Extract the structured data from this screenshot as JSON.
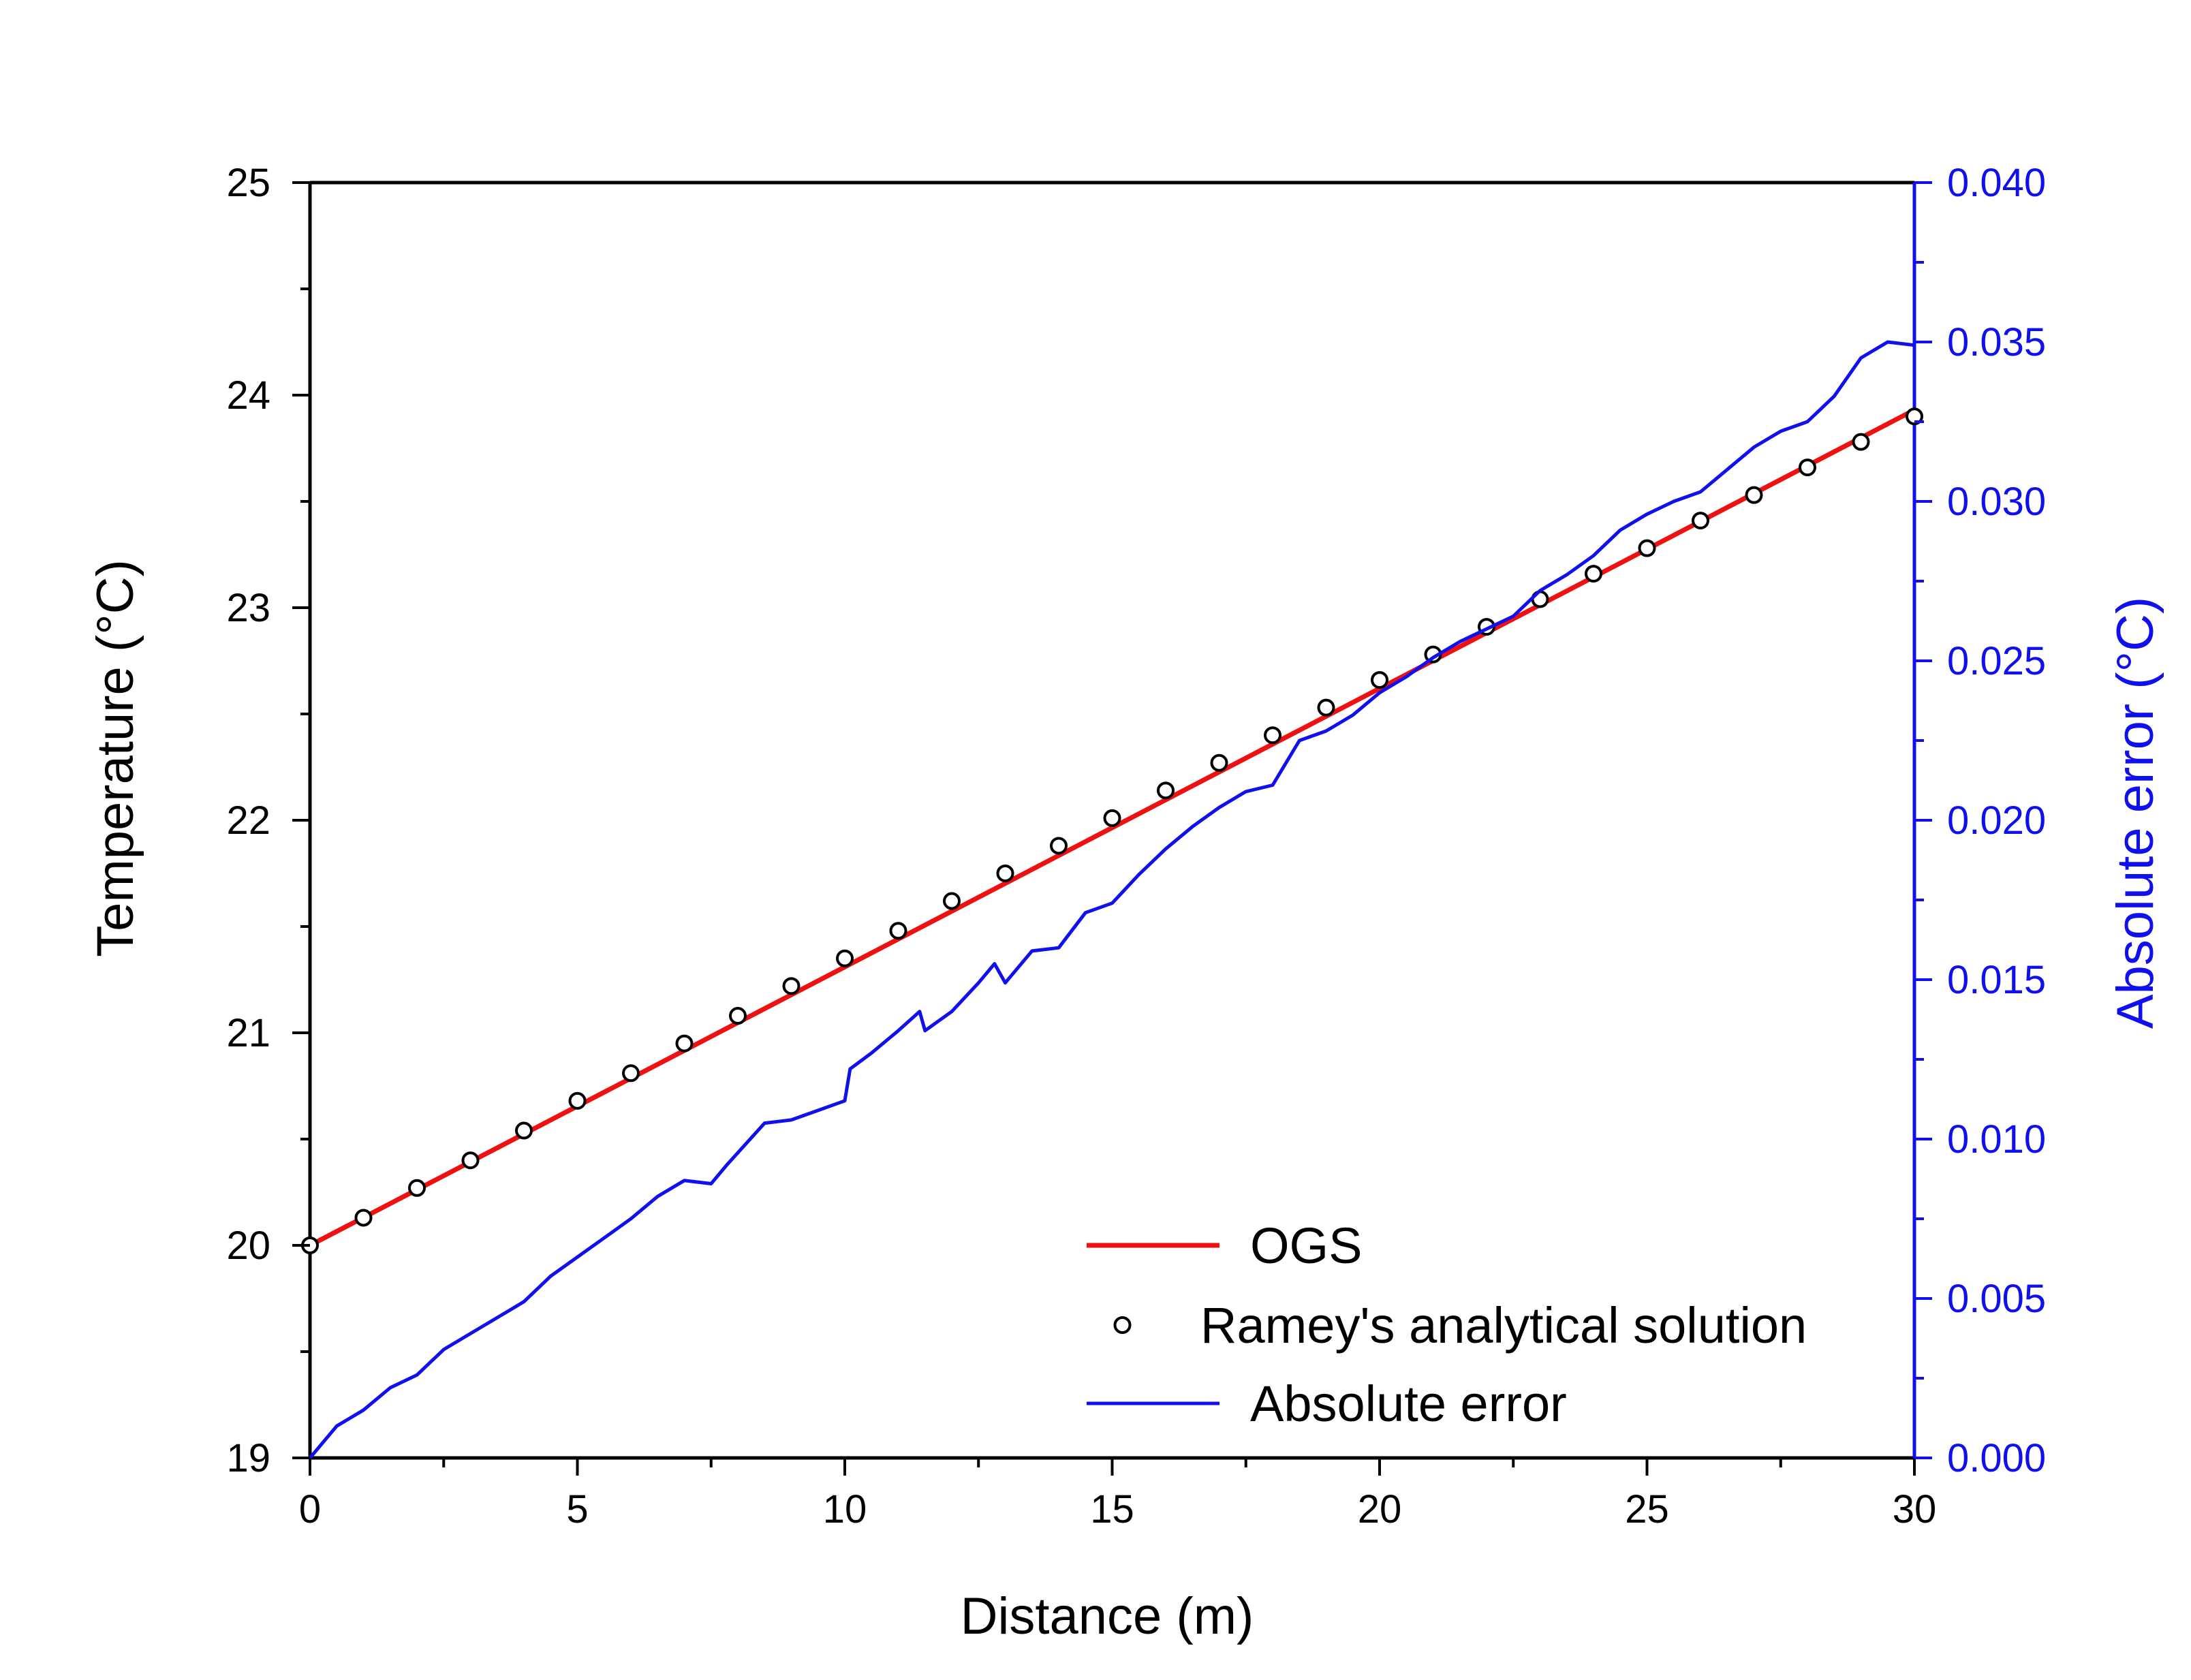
{
  "colors": {
    "ogs": "#ee1111",
    "analytical": "#000000",
    "error": "#1010ee",
    "right_axis": "#1010ee",
    "axes": "#000000",
    "background": "#ffffff"
  },
  "chart_data": {
    "type": "line",
    "title": "",
    "xlabel": "Distance (m)",
    "ylabel_left": "Temperature (°C)",
    "ylabel_right": "Absolute error (°C)",
    "xlim": [
      0,
      30
    ],
    "ylim_left": [
      19,
      25
    ],
    "ylim_right": [
      0.0,
      0.04
    ],
    "x_ticks": [
      "0",
      "5",
      "10",
      "15",
      "20",
      "25",
      "30"
    ],
    "y_ticks_left": [
      "19",
      "20",
      "21",
      "22",
      "23",
      "24",
      "25"
    ],
    "y_ticks_right": [
      "0.000",
      "0.005",
      "0.010",
      "0.015",
      "0.020",
      "0.025",
      "0.030",
      "0.035",
      "0.040"
    ],
    "grid": false,
    "legend_position": "bottom-right",
    "series": [
      {
        "name": "OGS",
        "axis": "left",
        "style": "line",
        "x": [
          0,
          30
        ],
        "y": [
          20.0,
          23.93
        ]
      },
      {
        "name": "Ramey's analytical solution",
        "axis": "left",
        "style": "markers",
        "x": [
          0,
          1,
          2,
          3,
          4,
          5,
          6,
          7,
          8,
          9,
          10,
          11,
          12,
          13,
          14,
          15,
          16,
          17,
          18,
          19,
          20,
          21,
          22,
          23,
          24,
          25,
          26,
          27,
          28,
          29,
          30
        ],
        "y": [
          20.0,
          20.13,
          20.27,
          20.4,
          20.54,
          20.68,
          20.81,
          20.95,
          21.08,
          21.22,
          21.35,
          21.48,
          21.62,
          21.75,
          21.88,
          22.01,
          22.14,
          22.27,
          22.4,
          22.53,
          22.66,
          22.78,
          22.91,
          23.04,
          23.16,
          23.28,
          23.41,
          23.53,
          23.66,
          23.78,
          23.9
        ]
      },
      {
        "name": "Absolute error",
        "axis": "right",
        "style": "line",
        "x": [
          0,
          0.5,
          1,
          1.5,
          2,
          2.5,
          3,
          3.5,
          4,
          4.5,
          5,
          5.5,
          6,
          6.5,
          7,
          7.5,
          7.8,
          8.5,
          9,
          9.5,
          10,
          10.1,
          10.5,
          11,
          11.4,
          11.5,
          12,
          12.5,
          12.8,
          13,
          13.5,
          14,
          14.5,
          15,
          15.5,
          16,
          16.5,
          17,
          17.5,
          18,
          18.5,
          19,
          19.5,
          20,
          20.5,
          21,
          21.5,
          22,
          22.5,
          23,
          23.5,
          24,
          24.5,
          25,
          25.5,
          26,
          26.5,
          27,
          27.5,
          28,
          28.5,
          29,
          29.5,
          30
        ],
        "y": [
          0.0,
          0.001,
          0.0015,
          0.0022,
          0.0026,
          0.0034,
          0.0039,
          0.0044,
          0.0049,
          0.0057,
          0.0063,
          0.0069,
          0.0075,
          0.0082,
          0.0087,
          0.0086,
          0.0092,
          0.0105,
          0.0106,
          0.0109,
          0.0112,
          0.0122,
          0.0127,
          0.0134,
          0.014,
          0.0134,
          0.014,
          0.0149,
          0.0155,
          0.0149,
          0.0159,
          0.016,
          0.0171,
          0.0174,
          0.0183,
          0.0191,
          0.0198,
          0.0204,
          0.0209,
          0.0211,
          0.0225,
          0.0228,
          0.0233,
          0.024,
          0.0245,
          0.0251,
          0.0256,
          0.026,
          0.0264,
          0.0272,
          0.0277,
          0.0283,
          0.0291,
          0.0296,
          0.03,
          0.0303,
          0.031,
          0.0317,
          0.0322,
          0.0325,
          0.0333,
          0.0345,
          0.035,
          0.0349
        ]
      }
    ],
    "legend": [
      "OGS",
      "Ramey's analytical solution",
      "Absolute error"
    ]
  }
}
